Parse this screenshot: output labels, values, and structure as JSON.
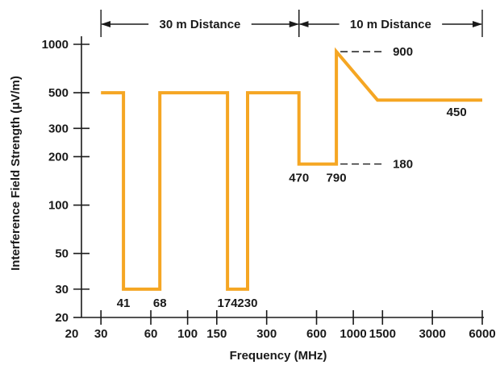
{
  "chart_data": {
    "type": "line",
    "x_scale": "log",
    "y_scale": "log",
    "xlabel": "Frequency (MHz)",
    "ylabel": "Interference Field Strength (μV/m)",
    "xlim": [
      20,
      6000
    ],
    "ylim": [
      20,
      1000
    ],
    "x_ticks": [
      20,
      30,
      60,
      100,
      150,
      300,
      600,
      1000,
      1500,
      3000,
      6000
    ],
    "y_ticks": [
      20,
      30,
      50,
      100,
      200,
      300,
      500,
      1000
    ],
    "grid": false,
    "line_color": "#f5a623",
    "series": [
      {
        "points": [
          [
            30,
            500
          ],
          [
            41,
            500
          ],
          [
            41,
            30
          ],
          [
            68,
            30
          ],
          [
            68,
            500
          ],
          [
            174,
            500
          ],
          [
            174,
            30
          ],
          [
            230,
            30
          ],
          [
            230,
            500
          ],
          [
            470,
            500
          ],
          [
            470,
            180
          ],
          [
            790,
            180
          ],
          [
            790,
            900
          ],
          [
            1400,
            450
          ],
          [
            6000,
            450
          ]
        ]
      }
    ],
    "regions": [
      {
        "label": "30 m Distance",
        "x_from": 30,
        "x_to": 470
      },
      {
        "label": "10 m Distance",
        "x_from": 470,
        "x_to": 6000
      }
    ],
    "annotations": {
      "frequency_labels": [
        {
          "text": "41",
          "x": 41,
          "y": 30
        },
        {
          "text": "68",
          "x": 68,
          "y": 30
        },
        {
          "text": "174",
          "x": 174,
          "y": 30
        },
        {
          "text": "230",
          "x": 230,
          "y": 30
        },
        {
          "text": "470",
          "x": 470,
          "y": 180
        },
        {
          "text": "790",
          "x": 790,
          "y": 180
        },
        {
          "text": "450",
          "x": 4200,
          "y": 450
        }
      ],
      "level_labels": [
        {
          "text": "900",
          "x": 790,
          "y": 900
        },
        {
          "text": "180",
          "x": 790,
          "y": 180
        }
      ]
    }
  }
}
